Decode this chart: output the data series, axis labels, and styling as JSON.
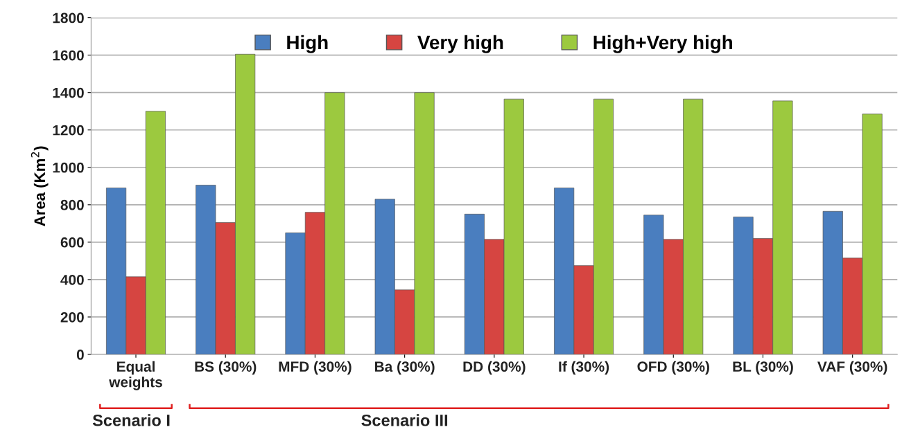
{
  "chart_data": {
    "type": "bar",
    "ylabel": "Area (Km$^{2}$)",
    "categories": [
      "Equal\nweights",
      "BS (30%)",
      "MFD (30%)",
      "Ba (30%)",
      "DD (30%)",
      "If (30%)",
      "OFD (30%)",
      "BL (30%)",
      "VAF (30%)"
    ],
    "series": [
      {
        "name": "High",
        "color": "#4a7ebf",
        "values": [
          890,
          905,
          650,
          830,
          750,
          890,
          745,
          735,
          765
        ]
      },
      {
        "name": "Very high",
        "color": "#d64541",
        "values": [
          415,
          705,
          760,
          345,
          615,
          475,
          615,
          620,
          515
        ]
      },
      {
        "name": "High+Very high",
        "color": "#9cc93f",
        "values": [
          1300,
          1605,
          1400,
          1400,
          1365,
          1365,
          1365,
          1355,
          1285
        ]
      }
    ],
    "ylim": [
      0,
      1800
    ],
    "yticks": [
      0,
      200,
      400,
      600,
      800,
      1000,
      1200,
      1400,
      1600,
      1800
    ],
    "grid": "y",
    "legend": "top",
    "annotations": [
      "Scenario I",
      "Scenario III"
    ]
  }
}
